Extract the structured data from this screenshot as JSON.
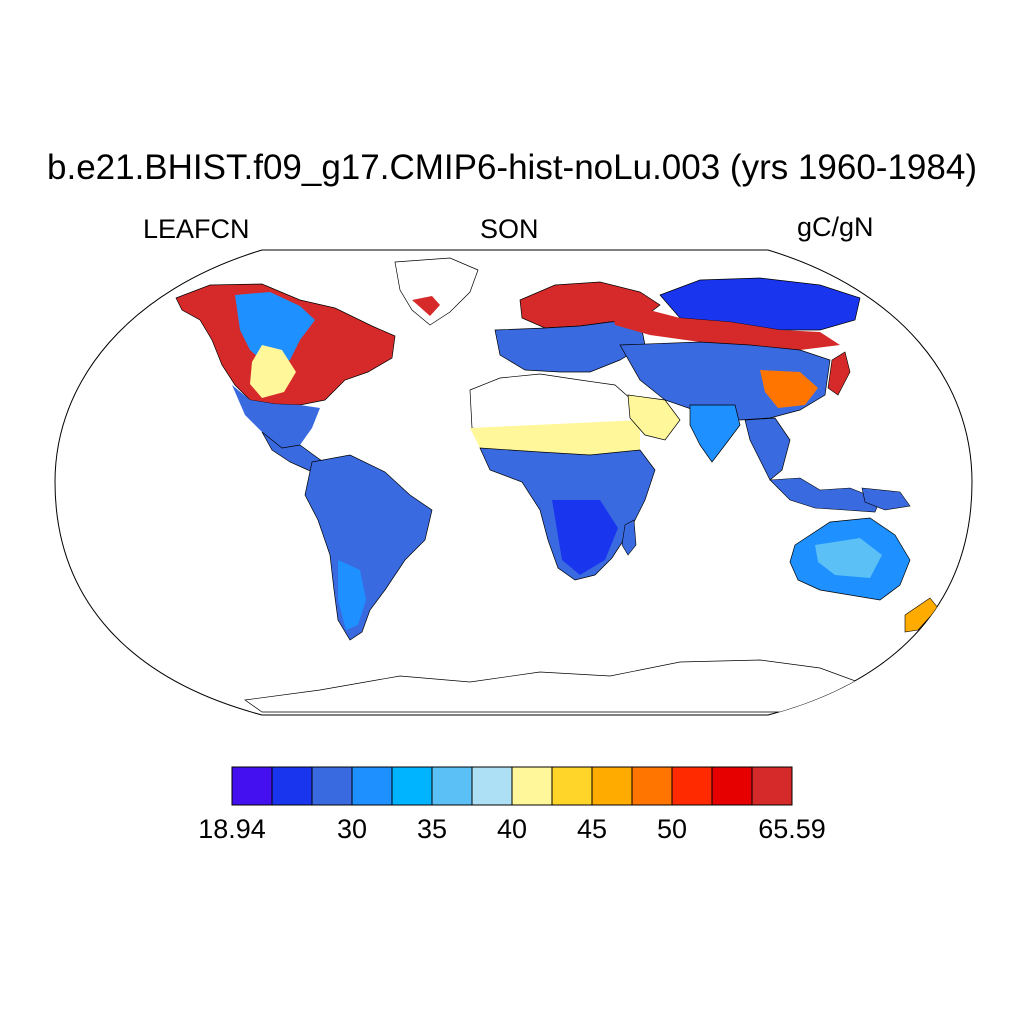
{
  "title": "b.e21.BHIST.f09_g17.CMIP6-hist-noLu.003 (yrs 1960-1984)",
  "left_subtitle": "LEAFCN",
  "center_subtitle": "SON",
  "right_subtitle": "gC/gN",
  "projection": "Robinson",
  "colors": {
    "ocean": "#ffffff",
    "outline": "#000000",
    "colorbar": [
      "#4410f0",
      "#1a35ee",
      "#3a6ae0",
      "#1e90ff",
      "#00b4ff",
      "#5ac0f5",
      "#aee0f5",
      "#fff79a",
      "#ffd52a",
      "#ffab00",
      "#ff7500",
      "#ff2a00",
      "#e60000",
      "#d62a2a"
    ]
  },
  "colorbar": {
    "labels": [
      {
        "text": "18.94",
        "index": 0
      },
      {
        "text": "30",
        "index": 3
      },
      {
        "text": "35",
        "index": 4
      },
      {
        "text": "40",
        "index": 5
      },
      {
        "text": "45",
        "index": 6
      },
      {
        "text": "50",
        "index": 7
      },
      {
        "text": "65.59",
        "index": 9
      }
    ]
  }
}
